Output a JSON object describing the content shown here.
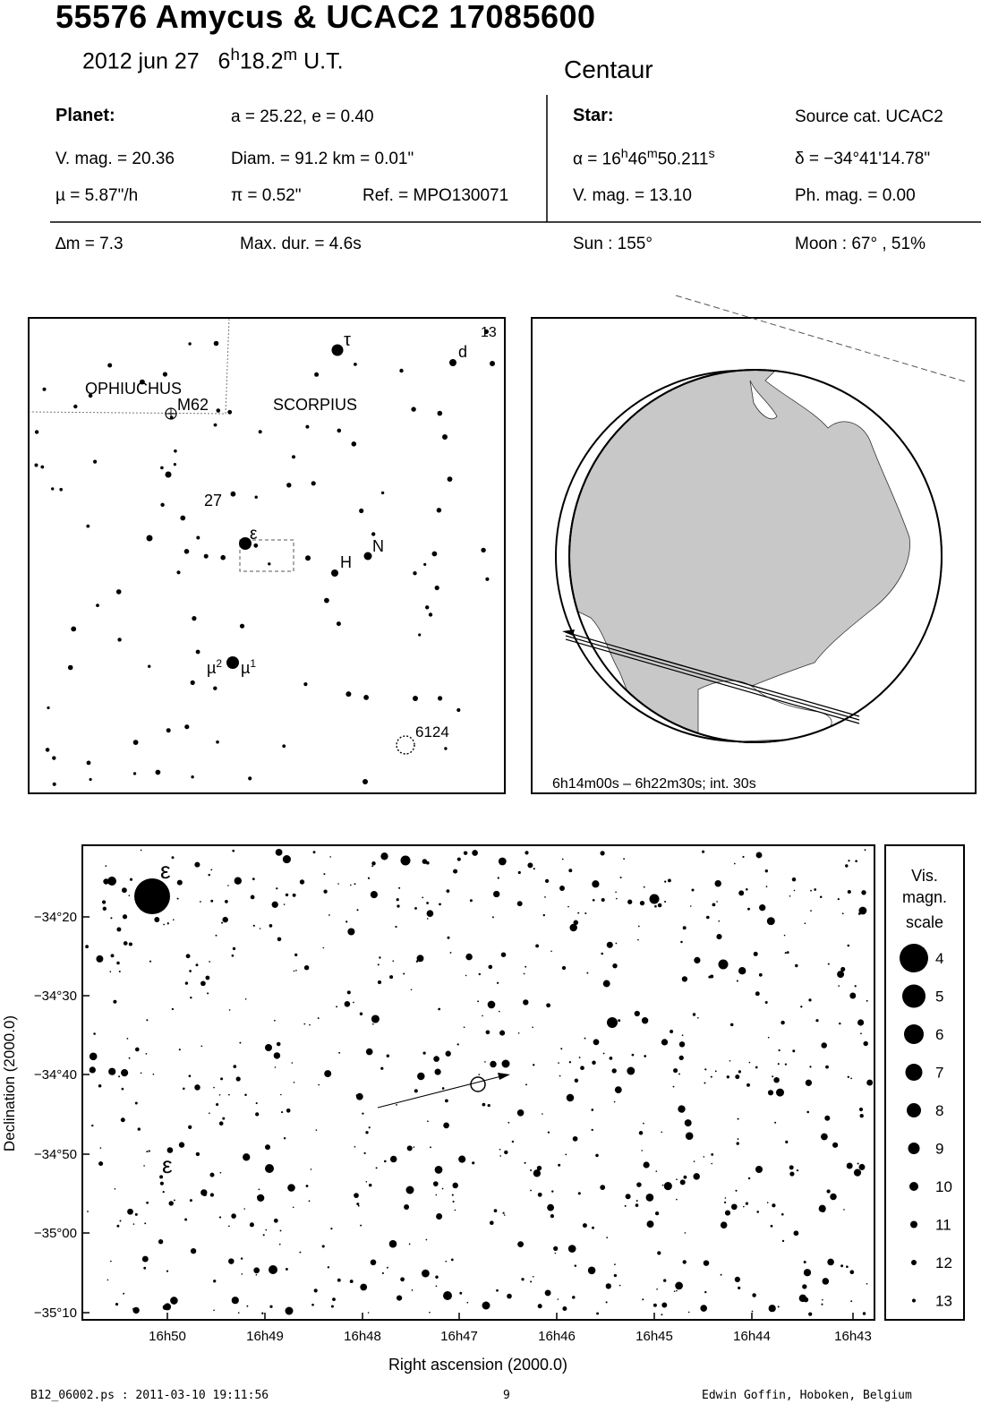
{
  "header": {
    "title": "55576 Amycus  &  UCAC2 17085600",
    "date": "2012 jun 27",
    "time_h": "6",
    "time_h_sup": "h",
    "time_m": "18.2",
    "time_m_sup": "m",
    "time_ut": "U.T.",
    "constellation": "Centaur"
  },
  "planet": {
    "heading": "Planet:",
    "orbit": "a = 25.22, e = 0.40",
    "vmag": "V. mag. = 20.36",
    "diam": "Diam. = 91.2 km = 0.01\"",
    "mu": "µ =  5.87\"/h",
    "pi": "π =  0.52\"",
    "ref": "Ref. = MPO130071"
  },
  "star": {
    "heading": "Star:",
    "source": "Source cat.  UCAC2",
    "ra_a": "α = 16",
    "ra_h": "h",
    "ra_m_val": "46",
    "ra_m": "m",
    "ra_s_val": "50.211",
    "ra_s": "s",
    "dec": "δ = −34°41'14.78\"",
    "vmag": "V. mag. = 13.10",
    "phmag": "Ph. mag. =  0.00"
  },
  "event": {
    "dm": "∆m = 7.3",
    "maxdur": "Max. dur. = 4.6s",
    "sun": "Sun : 155°",
    "moon": "Moon :  67° , 51%"
  },
  "finder": {
    "labels": {
      "ophiuchus": "OPHIUCHUS",
      "scorpius": "SCORPIUS",
      "m62": "M62",
      "tau": "τ",
      "d": "d",
      "n13": "13",
      "n27": "27",
      "eps": "ε",
      "H": "H",
      "N": "N",
      "mu2": "µ",
      "mu2_sup": "2",
      "mu1": "µ",
      "mu1_sup": "1",
      "ngc6124": "6124"
    }
  },
  "globe": {
    "caption": "6h14m00s –  6h22m30s; int. 30s"
  },
  "chart_data": {
    "type": "scatter",
    "xlabel": "Right ascension (2000.0)",
    "ylabel": "Declination (2000.0)",
    "x_ticks": [
      "16h50",
      "16h49",
      "16h48",
      "16h47",
      "16h46",
      "16h45",
      "16h44",
      "16h43"
    ],
    "y_ticks": [
      "−34°20",
      "−34°30",
      "−34°40",
      "−34°50",
      "−35°00",
      "−35°10"
    ],
    "eps_label": "ε",
    "legend": {
      "title_lines": [
        "Vis.",
        "magn.",
        "scale"
      ],
      "mags": [
        "4",
        "5",
        "6",
        "7",
        "8",
        "9",
        "10",
        "11",
        "12",
        "13"
      ]
    }
  },
  "footer": {
    "left": "B12_06002.ps : 2011-03-10 19:11:56",
    "center": "9",
    "right": "Edwin Goffin, Hoboken, Belgium"
  }
}
